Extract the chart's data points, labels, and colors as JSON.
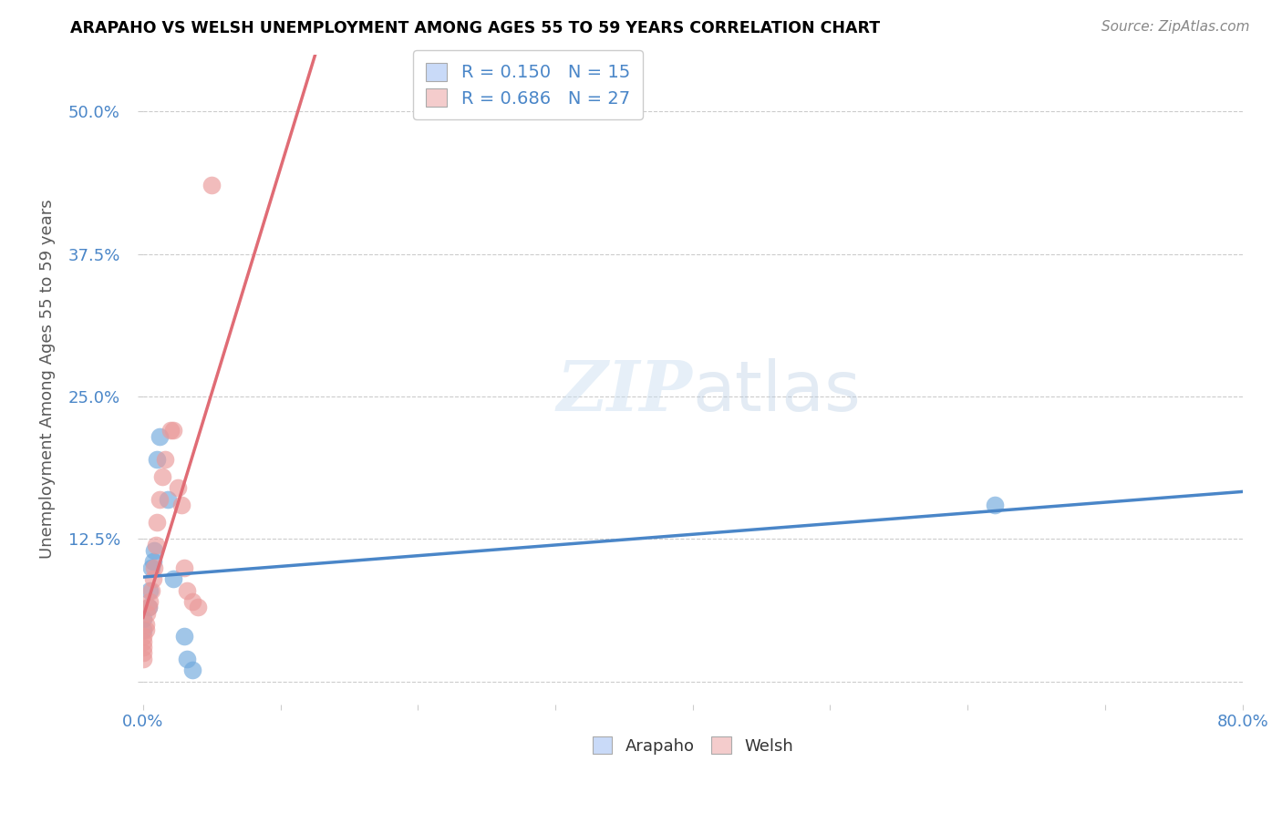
{
  "title": "ARAPAHO VS WELSH UNEMPLOYMENT AMONG AGES 55 TO 59 YEARS CORRELATION CHART",
  "source": "Source: ZipAtlas.com",
  "xlabel": "",
  "ylabel": "Unemployment Among Ages 55 to 59 years",
  "xlim": [
    0.0,
    0.8
  ],
  "ylim": [
    -0.02,
    0.55
  ],
  "xticks": [
    0.0,
    0.1,
    0.2,
    0.3,
    0.4,
    0.5,
    0.6,
    0.7,
    0.8
  ],
  "xticklabels": [
    "0.0%",
    "",
    "",
    "",
    "",
    "",
    "",
    "",
    "80.0%"
  ],
  "yticks": [
    0.0,
    0.125,
    0.25,
    0.375,
    0.5
  ],
  "yticklabels": [
    "",
    "12.5%",
    "25.0%",
    "37.5%",
    "50.0%"
  ],
  "arapaho_x": [
    0.0,
    0.0,
    0.004,
    0.005,
    0.006,
    0.007,
    0.008,
    0.01,
    0.012,
    0.018,
    0.022,
    0.03,
    0.032,
    0.036,
    0.62
  ],
  "arapaho_y": [
    0.045,
    0.055,
    0.065,
    0.08,
    0.1,
    0.105,
    0.115,
    0.195,
    0.215,
    0.16,
    0.09,
    0.04,
    0.02,
    0.01,
    0.155
  ],
  "welsh_x": [
    0.0,
    0.0,
    0.0,
    0.0,
    0.0,
    0.002,
    0.002,
    0.003,
    0.004,
    0.005,
    0.006,
    0.007,
    0.008,
    0.009,
    0.01,
    0.012,
    0.014,
    0.016,
    0.02,
    0.022,
    0.025,
    0.028,
    0.03,
    0.032,
    0.036,
    0.04,
    0.05
  ],
  "welsh_y": [
    0.02,
    0.025,
    0.03,
    0.035,
    0.04,
    0.045,
    0.05,
    0.06,
    0.065,
    0.07,
    0.08,
    0.09,
    0.1,
    0.12,
    0.14,
    0.16,
    0.18,
    0.195,
    0.22,
    0.22,
    0.17,
    0.155,
    0.1,
    0.08,
    0.07,
    0.065,
    0.435
  ],
  "arapaho_color": "#6fa8dc",
  "welsh_color": "#ea9999",
  "arapaho_line_color": "#4a86c8",
  "welsh_line_color": "#e06c75",
  "arapaho_R": 0.15,
  "arapaho_N": 15,
  "welsh_R": 0.686,
  "welsh_N": 27,
  "watermark_zip": "ZIP",
  "watermark_atlas": "atlas",
  "background_color": "#ffffff",
  "grid_color": "#cccccc",
  "title_color": "#000000",
  "axis_label_color": "#595959",
  "tick_color": "#4a86c8",
  "source_color": "#888888",
  "legend_box_color_arapaho": "#c9daf8",
  "legend_box_color_welsh": "#f4cccc",
  "legend_text_color": "#4a86c8"
}
